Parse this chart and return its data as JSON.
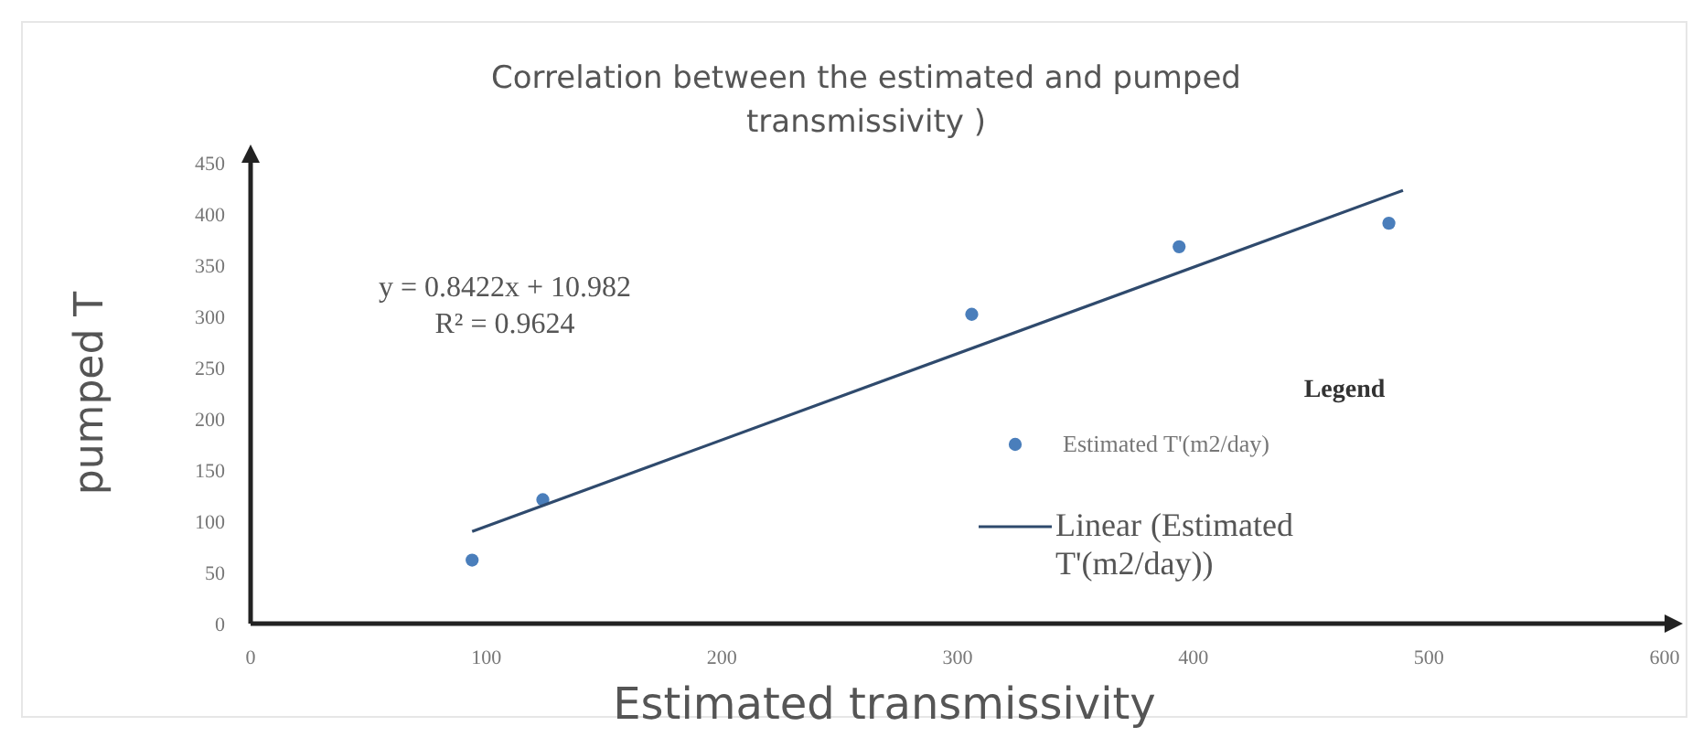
{
  "chart_data": {
    "type": "scatter",
    "title": "Correlation between the estimated and pumped transmissivity )",
    "xlabel": "Estimated transmissivity",
    "ylabel": "pumped T",
    "legend_title": "Legend",
    "annotations": [
      "y = 0.8422x + 10.982",
      "R² = 0.9624"
    ],
    "x": [
      94,
      124,
      306,
      394,
      483
    ],
    "series": [
      {
        "name": "Estimated T'(m2/day)",
        "color": "#4a7ebb",
        "values": [
          62,
          121,
          302,
          368,
          391
        ]
      },
      {
        "name": "Linear (Estimated T'(m2/day))",
        "type": "line",
        "marker": "none",
        "color": "#2f4a6d",
        "x": [
          94,
          489
        ],
        "values": [
          90,
          423
        ]
      }
    ],
    "xlim": [
      0,
      600
    ],
    "xticks": [
      0,
      100,
      200,
      300,
      400,
      500,
      600
    ],
    "ylim": [
      0,
      450
    ],
    "yticks": [
      0,
      50,
      100,
      150,
      200,
      250,
      300,
      350,
      400,
      450
    ],
    "grid": false,
    "legend": "right",
    "marker": "circle",
    "line_style": "solid"
  }
}
